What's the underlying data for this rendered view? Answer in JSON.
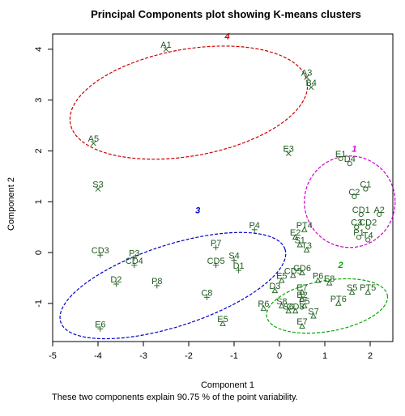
{
  "chart_data": {
    "type": "scatter",
    "title": "Principal Components plot showing K-means clusters",
    "xlabel": "Component 1",
    "ylabel": "Component 2",
    "xlim": [
      -5,
      2.5
    ],
    "ylim": [
      -1.75,
      4.3
    ],
    "x_ticks": [
      -5,
      -4,
      -3,
      -2,
      -1,
      0,
      1,
      2
    ],
    "y_ticks": [
      -1,
      0,
      1,
      2,
      3,
      4
    ],
    "grid": false,
    "clusters": [
      {
        "label": "1",
        "color": "#cc00cc",
        "marker": "o"
      },
      {
        "label": "2",
        "color": "#00aa00",
        "marker": "triangle"
      },
      {
        "label": "3",
        "color": "#0000cc",
        "marker": "+"
      },
      {
        "label": "4",
        "color": "#cc0000",
        "marker": "x"
      }
    ],
    "ellipses": [
      {
        "cluster": "4",
        "cx": -2.0,
        "cy": 2.95,
        "rx": 2.65,
        "ry": 1.05,
        "angle": 10
      },
      {
        "cluster": "1",
        "cx": 1.55,
        "cy": 1.0,
        "rx": 1.0,
        "ry": 0.9,
        "angle": 0
      },
      {
        "cluster": "3",
        "cx": -2.35,
        "cy": -0.65,
        "rx": 2.6,
        "ry": 0.8,
        "angle": 18
      },
      {
        "cluster": "2",
        "cx": 1.05,
        "cy": -1.05,
        "rx": 1.35,
        "ry": 0.5,
        "angle": 10
      }
    ],
    "cluster_label_positions": [
      {
        "cluster": "4",
        "x": -1.15,
        "y": 4.2
      },
      {
        "cluster": "1",
        "x": 1.65,
        "y": 1.98
      },
      {
        "cluster": "3",
        "x": -1.8,
        "y": 0.77
      },
      {
        "cluster": "2",
        "x": 1.35,
        "y": -0.3
      }
    ],
    "points": [
      {
        "label": "A1",
        "x": -2.5,
        "y": 4.0,
        "cluster": "4"
      },
      {
        "label": "A3",
        "x": 0.6,
        "y": 3.45,
        "cluster": "4"
      },
      {
        "label": "B4",
        "x": 0.7,
        "y": 3.25,
        "cluster": "4"
      },
      {
        "label": "A5",
        "x": -4.1,
        "y": 2.15,
        "cluster": "4"
      },
      {
        "label": "E3",
        "x": 0.2,
        "y": 1.95,
        "cluster": "4"
      },
      {
        "label": "S3",
        "x": -4.0,
        "y": 1.25,
        "cluster": "4"
      },
      {
        "label": "E1",
        "x": 1.35,
        "y": 1.85,
        "cluster": "1"
      },
      {
        "label": "D4",
        "x": 1.55,
        "y": 1.75,
        "cluster": "1"
      },
      {
        "label": "C1",
        "x": 1.9,
        "y": 1.25,
        "cluster": "1"
      },
      {
        "label": "C2",
        "x": 1.65,
        "y": 1.1,
        "cluster": "1"
      },
      {
        "label": "A2",
        "x": 2.2,
        "y": 0.75,
        "cluster": "1"
      },
      {
        "label": "CD1",
        "x": 1.8,
        "y": 0.75,
        "cluster": "1"
      },
      {
        "label": "C3",
        "x": 1.7,
        "y": 0.5,
        "cluster": "1"
      },
      {
        "label": "CD2",
        "x": 1.95,
        "y": 0.5,
        "cluster": "1"
      },
      {
        "label": "P1",
        "x": 1.75,
        "y": 0.3,
        "cluster": "1"
      },
      {
        "label": "T4",
        "x": 1.95,
        "y": 0.25,
        "cluster": "1"
      },
      {
        "label": "PT4",
        "x": 0.55,
        "y": 0.45,
        "cluster": "2"
      },
      {
        "label": "E2",
        "x": 0.35,
        "y": 0.3,
        "cluster": "2"
      },
      {
        "label": "S1",
        "x": 0.45,
        "y": 0.15,
        "cluster": "2"
      },
      {
        "label": "T3",
        "x": 0.6,
        "y": 0.05,
        "cluster": "2"
      },
      {
        "label": "CD6",
        "x": 0.5,
        "y": -0.4,
        "cluster": "2"
      },
      {
        "label": "CD5",
        "x": 0.3,
        "y": -0.45,
        "cluster": "2"
      },
      {
        "label": "E5",
        "x": 0.05,
        "y": -0.55,
        "cluster": "2"
      },
      {
        "label": "P6",
        "x": 0.85,
        "y": -0.55,
        "cluster": "2"
      },
      {
        "label": "E8",
        "x": 1.1,
        "y": -0.6,
        "cluster": "2"
      },
      {
        "label": "D3",
        "x": -0.1,
        "y": -0.75,
        "cluster": "2"
      },
      {
        "label": "E7",
        "x": 0.5,
        "y": -0.78,
        "cluster": "2"
      },
      {
        "label": "S5",
        "x": 1.6,
        "y": -0.78,
        "cluster": "2"
      },
      {
        "label": "PT5",
        "x": 1.95,
        "y": -0.78,
        "cluster": "2"
      },
      {
        "label": "B2",
        "x": 0.5,
        "y": -0.92,
        "cluster": "2"
      },
      {
        "label": "PT6",
        "x": 1.3,
        "y": -1.0,
        "cluster": "2"
      },
      {
        "label": "P5",
        "x": 0.55,
        "y": -1.05,
        "cluster": "2"
      },
      {
        "label": "S8",
        "x": 0.05,
        "y": -1.05,
        "cluster": "2"
      },
      {
        "label": "R6",
        "x": -0.35,
        "y": -1.1,
        "cluster": "2"
      },
      {
        "label": "S6",
        "x": 0.2,
        "y": -1.15,
        "cluster": "2"
      },
      {
        "label": "CD8",
        "x": 0.35,
        "y": -1.15,
        "cluster": "2"
      },
      {
        "label": "S7",
        "x": 0.75,
        "y": -1.25,
        "cluster": "2"
      },
      {
        "label": "E5",
        "x": -1.25,
        "y": -1.4,
        "cluster": "2"
      },
      {
        "label": "E7",
        "x": 0.5,
        "y": -1.45,
        "cluster": "2"
      },
      {
        "label": "CD3",
        "x": -3.95,
        "y": -0.05,
        "cluster": "3"
      },
      {
        "label": "P4",
        "x": -0.55,
        "y": 0.45,
        "cluster": "3"
      },
      {
        "label": "P7",
        "x": -1.4,
        "y": 0.1,
        "cluster": "3"
      },
      {
        "label": "P3",
        "x": -3.2,
        "y": -0.1,
        "cluster": "3"
      },
      {
        "label": "CD4",
        "x": -3.2,
        "y": -0.25,
        "cluster": "3"
      },
      {
        "label": "S4",
        "x": -1.0,
        "y": -0.15,
        "cluster": "3"
      },
      {
        "label": "CD5",
        "x": -1.4,
        "y": -0.25,
        "cluster": "3"
      },
      {
        "label": "D1",
        "x": -0.9,
        "y": -0.35,
        "cluster": "3"
      },
      {
        "label": "D2",
        "x": -3.6,
        "y": -0.62,
        "cluster": "3"
      },
      {
        "label": "P8",
        "x": -2.7,
        "y": -0.65,
        "cluster": "3"
      },
      {
        "label": "C8",
        "x": -1.6,
        "y": -0.88,
        "cluster": "3"
      },
      {
        "label": "E6",
        "x": -3.95,
        "y": -1.5,
        "cluster": "3"
      }
    ]
  },
  "footer_text": "These two components explain 90.75 % of the point variability."
}
